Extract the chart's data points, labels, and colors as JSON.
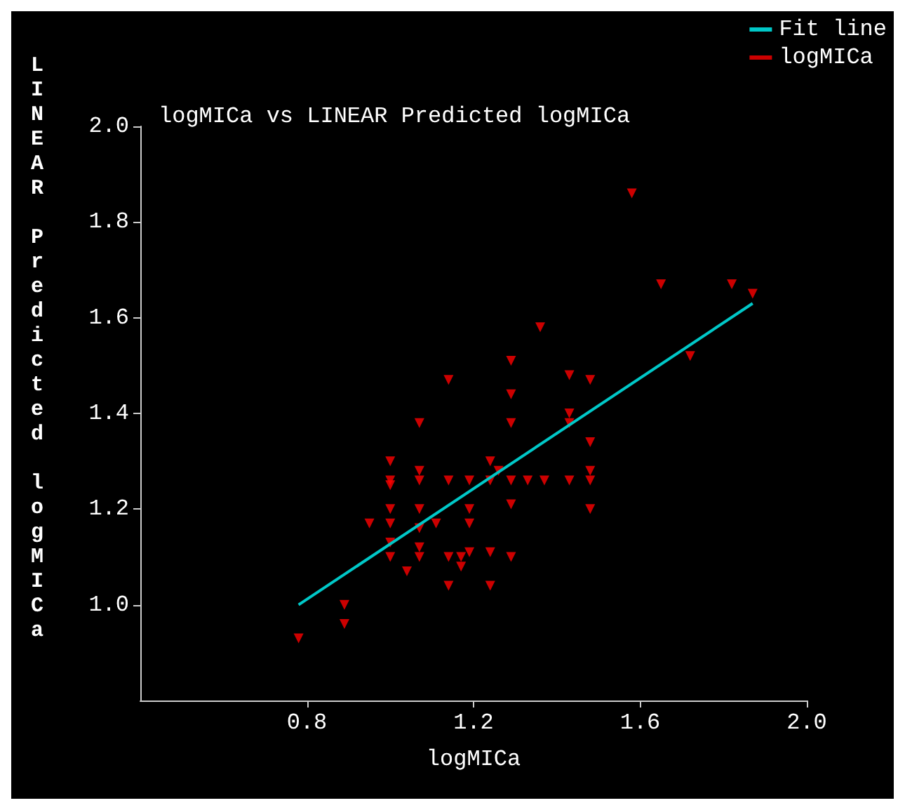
{
  "chart_data": {
    "type": "scatter",
    "title": "logMICa vs LINEAR Predicted logMICa",
    "xlabel": "logMICa",
    "ylabel": "LINEAR Predicted logMICa",
    "xlim": [
      0.4,
      2.0
    ],
    "xticks": [
      0.8,
      1.2,
      1.6,
      {
        "value": 2,
        "label": "2.0"
      }
    ],
    "ylim": [
      0.8,
      2.0
    ],
    "yticks": [
      {
        "value": 1,
        "label": "1.0"
      },
      1.2,
      1.4,
      1.6,
      1.8,
      {
        "value": 2,
        "label": "2.0"
      }
    ],
    "grid": false,
    "legend": "top right",
    "marker": "triangle",
    "series": [
      {
        "name": "Fit line",
        "type": "line",
        "color": "#00c8c8",
        "marker": "none",
        "x": [
          0.78,
          1.87
        ],
        "values": [
          1.0,
          1.63
        ]
      },
      {
        "name": "logMICa",
        "color": "#ff0000",
        "x": [
          0.78,
          0.89,
          0.89,
          1.0,
          1.0,
          1.0,
          1.0,
          1.0,
          1.0,
          0.95,
          1.0,
          1.04,
          1.07,
          1.07,
          1.07,
          1.07,
          1.07,
          1.07,
          1.07,
          1.11,
          1.14,
          1.14,
          1.14,
          1.14,
          1.17,
          1.17,
          1.19,
          1.19,
          1.19,
          1.19,
          1.24,
          1.24,
          1.24,
          1.24,
          1.26,
          1.29,
          1.29,
          1.29,
          1.29,
          1.29,
          1.29,
          1.33,
          1.58,
          1.65,
          1.82,
          1.87,
          1.72,
          1.36,
          1.43,
          1.48,
          1.43,
          1.43,
          1.48,
          1.37,
          1.43,
          1.48,
          1.48,
          1.48
        ],
        "values": [
          0.93,
          1.0,
          0.96,
          1.3,
          1.26,
          1.25,
          1.2,
          1.17,
          1.1,
          1.17,
          1.13,
          1.07,
          1.38,
          1.28,
          1.26,
          1.2,
          1.16,
          1.12,
          1.1,
          1.17,
          1.47,
          1.26,
          1.1,
          1.04,
          1.1,
          1.08,
          1.26,
          1.2,
          1.17,
          1.11,
          1.3,
          1.26,
          1.11,
          1.04,
          1.28,
          1.51,
          1.44,
          1.38,
          1.26,
          1.21,
          1.1,
          1.26,
          1.86,
          1.67,
          1.67,
          1.65,
          1.52,
          1.58,
          1.48,
          1.47,
          1.4,
          1.38,
          1.34,
          1.26,
          1.26,
          1.28,
          1.26,
          1.2
        ]
      }
    ]
  }
}
